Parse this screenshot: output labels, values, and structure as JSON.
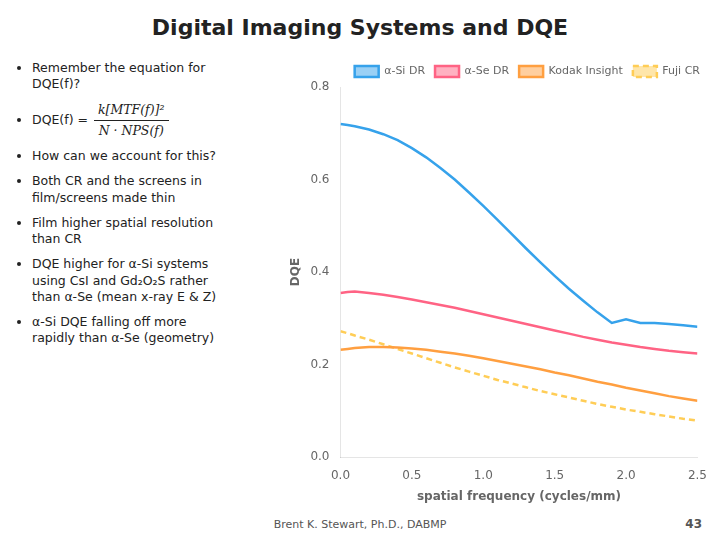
{
  "chart_data": {
    "type": "line",
    "title": "Digital Imaging Systems and DQE",
    "annotations": {
      "bullets": [
        "Remember the equation for\nDQE(f)?",
        [
          "DQE(f) =",
          "k[MTF(f)]²",
          "N · NPS(f)"
        ],
        "How can we account for this?",
        "Both CR and the screens in\nfilm/screens made thin",
        "Film higher spatial resolution\nthan CR",
        "DQE higher for α-Si systems\nusing CsI and Gd₂O₂S rather\nthan α-Se (mean x-ray E & Z)",
        "α-Si DQE falling off more\nrapidly than α-Se (geometry)"
      ],
      "footer": [
        "Brent K. Stewart, Ph.D., DABMP",
        "43"
      ]
    },
    "xlabel": "spatial frequency (cycles/mm)",
    "ylabel": "DQE",
    "x": [
      0.0,
      0.05,
      0.1,
      0.2,
      0.3,
      0.4,
      0.5,
      0.6,
      0.7,
      0.8,
      0.9,
      1.0,
      1.1,
      1.2,
      1.3,
      1.4,
      1.5,
      1.6,
      1.7,
      1.8,
      1.9,
      2.0,
      2.1,
      2.2,
      2.3,
      2.4,
      2.5
    ],
    "series": [
      {
        "name": "α-Si DR",
        "line_style": "solid",
        "values": [
          0.72,
          0.718,
          0.715,
          0.708,
          0.698,
          0.685,
          0.668,
          0.648,
          0.625,
          0.6,
          0.572,
          0.543,
          0.513,
          0.482,
          0.451,
          0.421,
          0.392,
          0.364,
          0.338,
          0.313,
          0.29,
          0.298,
          0.29,
          0.29,
          0.288,
          0.285,
          0.282
        ]
      },
      {
        "name": "α-Se DR",
        "line_style": "solid",
        "values": [
          0.355,
          0.357,
          0.358,
          0.355,
          0.351,
          0.346,
          0.341,
          0.335,
          0.329,
          0.323,
          0.316,
          0.309,
          0.302,
          0.295,
          0.288,
          0.281,
          0.274,
          0.267,
          0.26,
          0.254,
          0.248,
          0.243,
          0.238,
          0.234,
          0.23,
          0.227,
          0.224
        ]
      },
      {
        "name": "Kodak Insight",
        "line_style": "solid",
        "values": [
          0.232,
          0.234,
          0.236,
          0.238,
          0.238,
          0.237,
          0.235,
          0.232,
          0.228,
          0.224,
          0.219,
          0.214,
          0.208,
          0.202,
          0.196,
          0.19,
          0.183,
          0.177,
          0.17,
          0.163,
          0.157,
          0.15,
          0.144,
          0.138,
          0.132,
          0.127,
          0.122
        ]
      },
      {
        "name": "Fuji CR",
        "line_style": "dashed",
        "values": [
          0.272,
          0.268,
          0.263,
          0.254,
          0.244,
          0.234,
          0.224,
          0.214,
          0.204,
          0.194,
          0.185,
          0.176,
          0.167,
          0.159,
          0.151,
          0.143,
          0.136,
          0.129,
          0.122,
          0.115,
          0.109,
          0.103,
          0.098,
          0.093,
          0.088,
          0.083,
          0.079
        ]
      }
    ],
    "xlim": [
      0.0,
      2.5
    ],
    "ylim": [
      0.0,
      0.8
    ],
    "xticks": [
      {
        "value": 0.0,
        "label": "0.0"
      },
      0.5,
      {
        "value": 1.0,
        "label": "1.0"
      },
      1.5,
      {
        "value": 2.0,
        "label": "2.0"
      },
      2.5
    ],
    "yticks": [
      {
        "value": 0.0,
        "label": "0.0"
      },
      0.2,
      0.4,
      0.6,
      0.8
    ],
    "grid": false,
    "legend": "upper right"
  }
}
